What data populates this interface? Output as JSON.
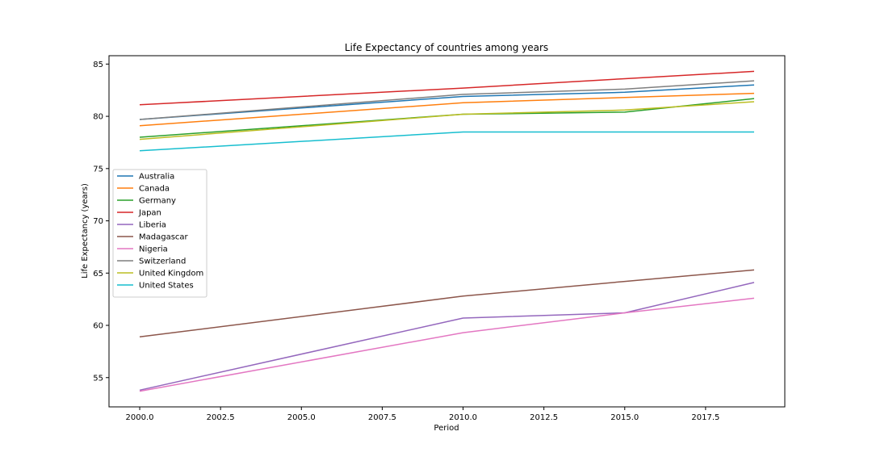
{
  "chart_data": {
    "type": "line",
    "title": "Life Expectancy of countries among years",
    "xlabel": "Period",
    "ylabel": "Life Expectancy (years)",
    "xlim": [
      1999.05,
      2019.95
    ],
    "ylim": [
      52.2,
      85.8
    ],
    "xticks": [
      2000.0,
      2002.5,
      2005.0,
      2007.5,
      2010.0,
      2012.5,
      2015.0,
      2017.5
    ],
    "xtick_labels": [
      "2000.0",
      "2002.5",
      "2005.0",
      "2007.5",
      "2010.0",
      "2012.5",
      "2015.0",
      "2017.5"
    ],
    "yticks": [
      55,
      60,
      65,
      70,
      75,
      80,
      85
    ],
    "ytick_labels": [
      "55",
      "60",
      "65",
      "70",
      "75",
      "80",
      "85"
    ],
    "grid": false,
    "legend_position": "center-left",
    "x": [
      2000,
      2010,
      2015,
      2019
    ],
    "series": [
      {
        "name": "Australia",
        "color": "#1f77b4",
        "values": [
          79.7,
          81.9,
          82.3,
          83.0
        ]
      },
      {
        "name": "Canada",
        "color": "#ff7f0e",
        "values": [
          79.1,
          81.3,
          81.8,
          82.2
        ]
      },
      {
        "name": "Germany",
        "color": "#2ca02c",
        "values": [
          78.0,
          80.2,
          80.4,
          81.7
        ]
      },
      {
        "name": "Japan",
        "color": "#d62728",
        "values": [
          81.1,
          82.7,
          83.6,
          84.3
        ]
      },
      {
        "name": "Liberia",
        "color": "#9467bd",
        "values": [
          53.8,
          60.7,
          61.2,
          64.1
        ]
      },
      {
        "name": "Madagascar",
        "color": "#8c564b",
        "values": [
          58.9,
          62.8,
          64.2,
          65.3
        ]
      },
      {
        "name": "Nigeria",
        "color": "#e377c2",
        "values": [
          53.7,
          59.3,
          61.2,
          62.6
        ]
      },
      {
        "name": "Switzerland",
        "color": "#7f7f7f",
        "values": [
          79.7,
          82.1,
          82.6,
          83.4
        ]
      },
      {
        "name": "United Kingdom",
        "color": "#bcbd22",
        "values": [
          77.8,
          80.2,
          80.6,
          81.4
        ]
      },
      {
        "name": "United States",
        "color": "#17becf",
        "values": [
          76.7,
          78.5,
          78.5,
          78.5
        ]
      }
    ]
  }
}
